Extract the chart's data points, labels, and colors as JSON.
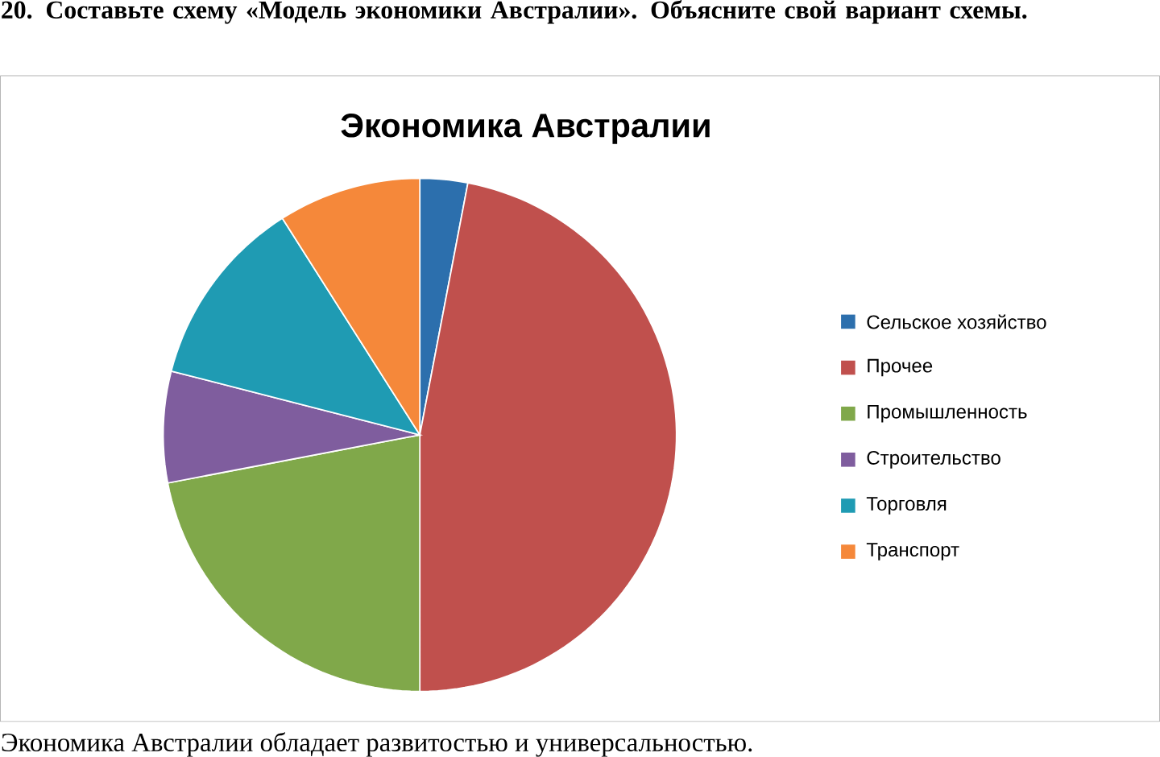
{
  "chart_data": {
    "type": "pie",
    "title": "Экономика Австралии",
    "categories": [
      "Сельское хозяйство",
      "Прочее",
      "Промышленность",
      "Строительство",
      "Торговля",
      "Транспорт"
    ],
    "values": [
      3,
      47,
      22,
      7,
      12,
      9
    ],
    "colors": [
      "#2c6fad",
      "#c0504d",
      "#80a84a",
      "#7f5d9e",
      "#1f9bb3",
      "#f5883a"
    ],
    "legend": "right",
    "annotations": [
      "20. Составьте схему «Модель экономики Австралии». Объясните свой вариант схемы.",
      "Экономика Австралии обладает развитостью и универсальностью."
    ]
  }
}
